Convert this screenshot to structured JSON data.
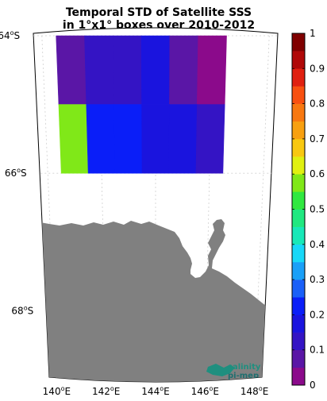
{
  "title": {
    "line1": "Temporal STD of Satellite SSS",
    "line2": "in 1°x1° boxes over 2010-2012"
  },
  "map": {
    "land_color": "#808080",
    "latitude_labels": [
      {
        "value": -64,
        "deg": "64",
        "hemi": "S"
      },
      {
        "value": -66,
        "deg": "66",
        "hemi": "S"
      },
      {
        "value": -68,
        "deg": "68",
        "hemi": "S"
      }
    ],
    "longitude_labels": [
      {
        "value": 140,
        "deg": "140",
        "hemi": "E"
      },
      {
        "value": 142,
        "deg": "142",
        "hemi": "E"
      },
      {
        "value": 144,
        "deg": "144",
        "hemi": "E"
      },
      {
        "value": 146,
        "deg": "146",
        "hemi": "E"
      },
      {
        "value": 148,
        "deg": "148",
        "hemi": "E"
      }
    ],
    "logo": {
      "line1": "salinity",
      "line2": "pi-mep"
    }
  },
  "colorbar": {
    "min": 0,
    "max": 1,
    "tick_labels": [
      "0",
      "0.1",
      "0.2",
      "0.3",
      "0.4",
      "0.5",
      "0.6",
      "0.7",
      "0.8",
      "0.9",
      "1"
    ],
    "colors": [
      "#8B0A8B",
      "#5A16A6",
      "#3414C4",
      "#1A14DE",
      "#0A1EF8",
      "#1A60F8",
      "#1AA0F8",
      "#18D8F8",
      "#18E8B8",
      "#20E880",
      "#30E840",
      "#80E818",
      "#E0F010",
      "#F8C810",
      "#F8A010",
      "#F87810",
      "#F85010",
      "#E02010",
      "#B00808",
      "#800000"
    ]
  },
  "chart_data": {
    "type": "heatmap",
    "title": "Temporal STD of Satellite SSS in 1°x1° boxes over 2010-2012",
    "xlabel": "",
    "ylabel": "",
    "x_unit": "°E",
    "y_unit": "°S",
    "xlim": [
      140,
      148
    ],
    "ylim": [
      -69,
      -64
    ],
    "value_range": [
      0,
      1
    ],
    "cells": [
      {
        "lon": [
          140.5,
          141.5
        ],
        "lat": [
          -65,
          -64
        ],
        "value": 0.05
      },
      {
        "lon": [
          141.5,
          142.5
        ],
        "lat": [
          -65,
          -64
        ],
        "value": 0.11
      },
      {
        "lon": [
          142.5,
          143.5
        ],
        "lat": [
          -65,
          -64
        ],
        "value": 0.11
      },
      {
        "lon": [
          143.5,
          144.5
        ],
        "lat": [
          -65,
          -64
        ],
        "value": 0.15
      },
      {
        "lon": [
          144.5,
          145.5
        ],
        "lat": [
          -65,
          -64
        ],
        "value": 0.07
      },
      {
        "lon": [
          145.5,
          146.5
        ],
        "lat": [
          -65,
          -64
        ],
        "value": 0.02
      },
      {
        "lon": [
          140.5,
          141.5
        ],
        "lat": [
          -66,
          -65
        ],
        "value": 0.58
      },
      {
        "lon": [
          141.5,
          142.5
        ],
        "lat": [
          -66,
          -65
        ],
        "value": 0.24
      },
      {
        "lon": [
          142.5,
          143.5
        ],
        "lat": [
          -66,
          -65
        ],
        "value": 0.24
      },
      {
        "lon": [
          143.5,
          144.5
        ],
        "lat": [
          -66,
          -65
        ],
        "value": 0.16
      },
      {
        "lon": [
          144.5,
          145.5
        ],
        "lat": [
          -66,
          -65
        ],
        "value": 0.16
      },
      {
        "lon": [
          145.5,
          146.5
        ],
        "lat": [
          -66,
          -65
        ],
        "value": 0.11
      }
    ]
  }
}
